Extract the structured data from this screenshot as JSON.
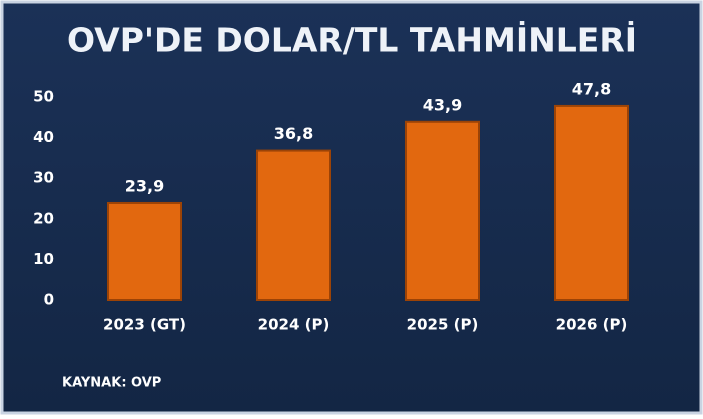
{
  "chart_data": {
    "type": "bar",
    "title": "OVP'DE DOLAR/TL TAHMİNLERİ",
    "categories": [
      "2023 (GT)",
      "2024 (P)",
      "2025 (P)",
      "2026 (P)"
    ],
    "values": [
      23.9,
      36.8,
      43.9,
      47.8
    ],
    "value_labels": [
      "23,9",
      "36,8",
      "43,9",
      "47,8"
    ],
    "color": "#e2680f",
    "ylim": [
      0,
      50
    ],
    "yticks": [
      0,
      10,
      20,
      30,
      40,
      50
    ],
    "grid": false,
    "source": "KAYNAK: OVP"
  }
}
